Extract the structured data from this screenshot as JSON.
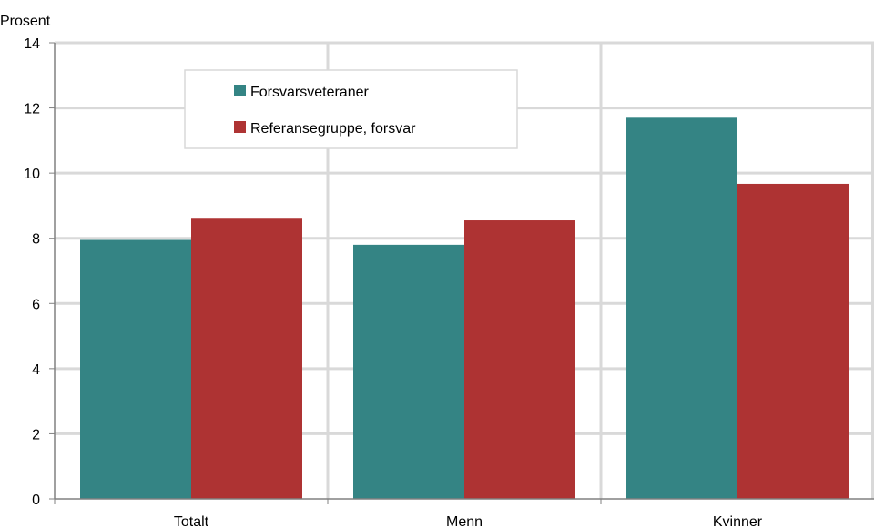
{
  "chart_data": {
    "type": "bar",
    "ylabel": "Prosent",
    "categories": [
      "Totalt",
      "Menn",
      "Kvinner"
    ],
    "series": [
      {
        "name": "Forsvarsveteraner",
        "color": "#348484",
        "values": [
          7.95,
          7.8,
          11.7
        ]
      },
      {
        "name": "Referansegruppe, forsvar",
        "color": "#ae3333",
        "values": [
          8.6,
          8.55,
          9.67
        ]
      }
    ],
    "ylim": [
      0,
      14
    ],
    "yticks": [
      0,
      2,
      4,
      6,
      8,
      10,
      12,
      14
    ],
    "grid": true,
    "legend_position": "top-left"
  }
}
